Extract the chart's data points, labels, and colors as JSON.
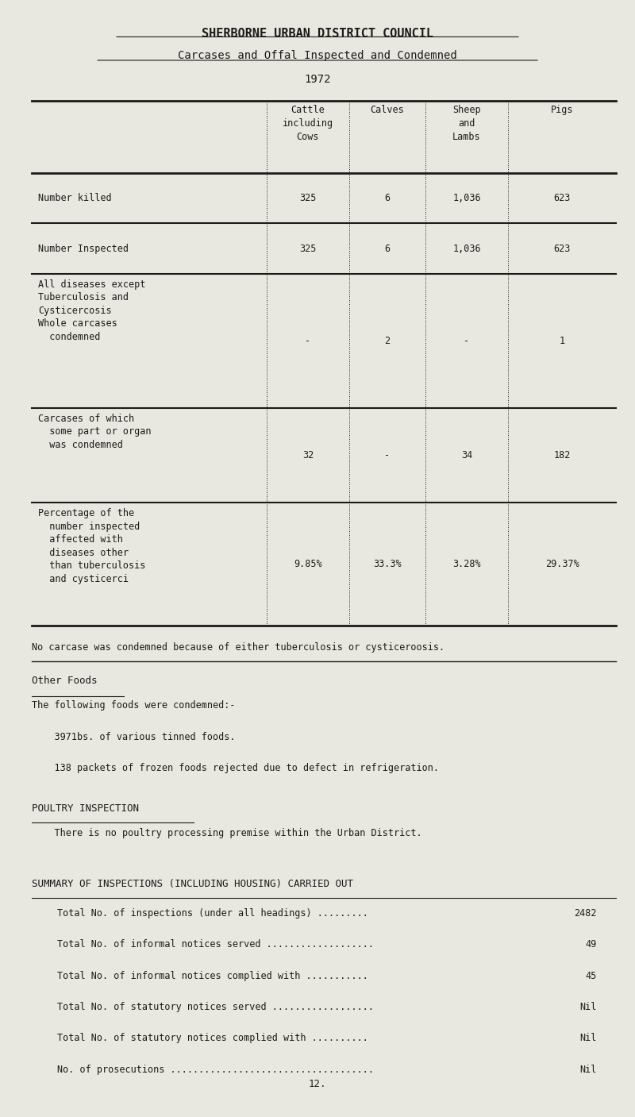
{
  "title": "SHERBORNE URBAN DISTRICT COUNCIL",
  "subtitle": "Carcases and Offal Inspected and Condemned",
  "year": "1972",
  "bg_color": "#e8e8e0",
  "text_color": "#1a1a1a",
  "col_headers": [
    "Cattle\nincluding\nCows",
    "Calves",
    "Sheep\nand\nLambs",
    "Pigs"
  ],
  "rows": [
    {
      "label": "Number killed",
      "values": [
        "325",
        "6",
        "1,036",
        "623"
      ],
      "multiline": false
    },
    {
      "label": "Number Inspected",
      "values": [
        "325",
        "6",
        "1,036",
        "623"
      ],
      "multiline": false
    },
    {
      "label": "All diseases except\nTuberculosis and\nCysticercosis\nWhole carcases\n  condemned",
      "values": [
        "-",
        "2",
        "-",
        "1"
      ],
      "multiline": true
    },
    {
      "label": "Carcases of which\n  some part or organ\n  was condemned",
      "values": [
        "32",
        "-",
        "34",
        "182"
      ],
      "multiline": true
    },
    {
      "label": "Percentage of the\n  number inspected\n  affected with\n  diseases other\n  than tuberculosis\n  and cysticerci",
      "values": [
        "9.85%",
        "33.3%",
        "3.28%",
        "29.37%"
      ],
      "multiline": true
    }
  ],
  "note": "No carcase was condemned because of either tuberculosis or cysticeroosis.",
  "other_foods_title": "Other Foods",
  "other_foods_text": [
    "The following foods were condemned:-",
    "    3971bs. of various tinned foods.",
    "    138 packets of frozen foods rejected due to defect in refrigeration."
  ],
  "poultry_title": "POULTRY INSPECTION",
  "poultry_text": "    There is no poultry processing premise within the Urban District.",
  "summary_title": "SUMMARY OF INSPECTIONS (INCLUDING HOUSING) CARRIED OUT",
  "summary_rows": [
    [
      "Total No. of inspections (under all headings) .........",
      "2482"
    ],
    [
      "Total No. of informal notices served ...................",
      "49"
    ],
    [
      "Total No. of informal notices complied with ...........",
      "45"
    ],
    [
      "Total No. of statutory notices served ..................",
      "Nil"
    ],
    [
      "Total No. of statutory notices complied with ..........",
      "Nil"
    ],
    [
      "No. of prosecutions ....................................",
      "Nil"
    ]
  ],
  "page_number": "12."
}
